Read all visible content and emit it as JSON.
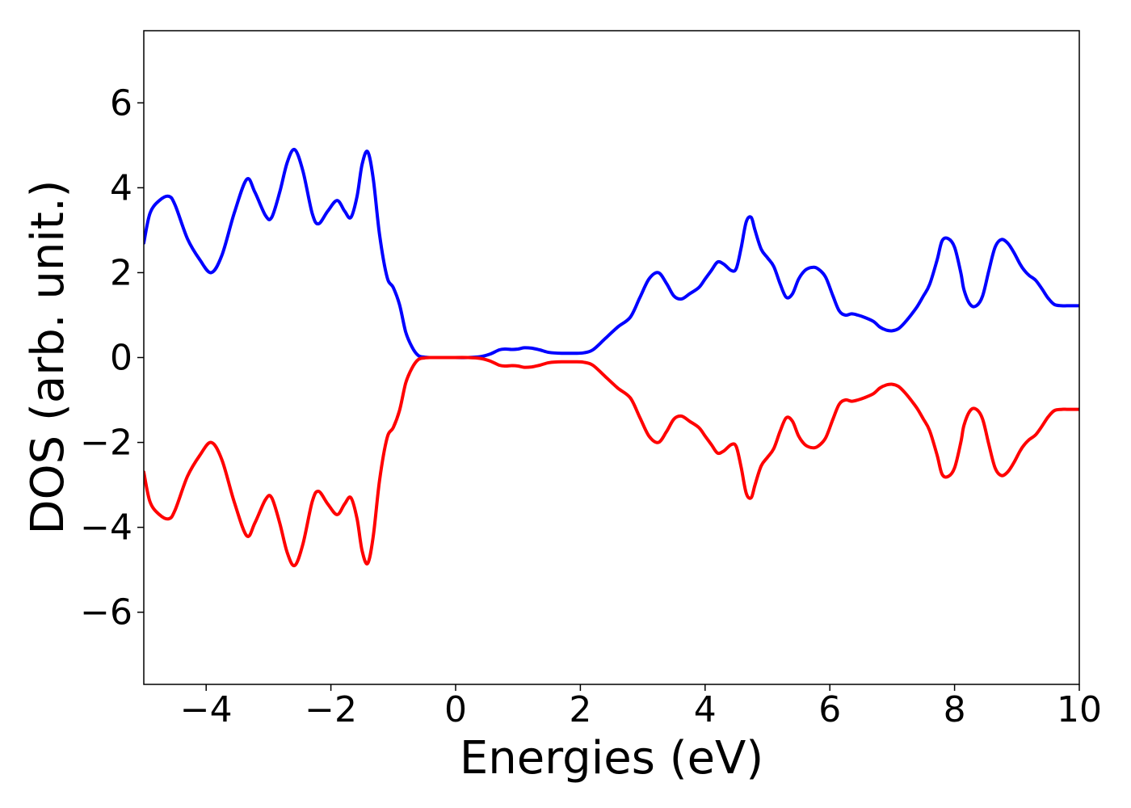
{
  "chart_data": {
    "type": "line",
    "title": "",
    "xlabel": "Energies (eV)",
    "ylabel": "DOS (arb. unit.)",
    "xlim": [
      -5,
      10
    ],
    "ylim": [
      -7.7,
      7.7
    ],
    "xticks": [
      -4,
      -2,
      0,
      2,
      4,
      6,
      8,
      10
    ],
    "xtick_labels": [
      "−4",
      "−2",
      "0",
      "2",
      "4",
      "6",
      "8",
      "10"
    ],
    "yticks": [
      -6,
      -4,
      -2,
      0,
      2,
      4,
      6
    ],
    "ytick_labels": [
      "−6",
      "−4",
      "−2",
      "0",
      "2",
      "4",
      "6"
    ],
    "grid": false,
    "legend": "none",
    "series": [
      {
        "color": "#0000ff",
        "x": [
          -5.0,
          -4.9,
          -4.75,
          -4.6,
          -4.5,
          -4.3,
          -4.1,
          -3.92,
          -3.75,
          -3.55,
          -3.35,
          -3.22,
          -3.05,
          -2.95,
          -2.82,
          -2.7,
          -2.58,
          -2.45,
          -2.3,
          -2.2,
          -2.05,
          -1.9,
          -1.78,
          -1.68,
          -1.58,
          -1.5,
          -1.41,
          -1.32,
          -1.22,
          -1.1,
          -1.0,
          -0.9,
          -0.8,
          -0.7,
          -0.6,
          -0.5,
          -0.4,
          -0.3,
          -0.1,
          0.2,
          0.4,
          0.55,
          0.7,
          0.8,
          0.9,
          1.0,
          1.1,
          1.22,
          1.35,
          1.5,
          1.7,
          1.9,
          2.05,
          2.2,
          2.4,
          2.6,
          2.8,
          2.95,
          3.1,
          3.25,
          3.38,
          3.5,
          3.62,
          3.75,
          3.9,
          4.0,
          4.1,
          4.2,
          4.3,
          4.42,
          4.5,
          4.58,
          4.66,
          4.74,
          4.8,
          4.9,
          5.0,
          5.1,
          5.2,
          5.3,
          5.4,
          5.5,
          5.6,
          5.7,
          5.8,
          5.93,
          6.05,
          6.15,
          6.25,
          6.35,
          6.45,
          6.55,
          6.7,
          6.8,
          6.9,
          7.0,
          7.1,
          7.2,
          7.3,
          7.4,
          7.5,
          7.6,
          7.72,
          7.8,
          7.9,
          8.0,
          8.1,
          8.15,
          8.25,
          8.35,
          8.45,
          8.55,
          8.65,
          8.75,
          8.85,
          8.95,
          9.05,
          9.12,
          9.2,
          9.3,
          9.4,
          9.5,
          9.6,
          9.72,
          9.8,
          9.9,
          10.0
        ],
        "y": [
          2.7,
          3.4,
          3.7,
          3.8,
          3.6,
          2.8,
          2.3,
          2.0,
          2.4,
          3.4,
          4.2,
          3.9,
          3.35,
          3.3,
          3.9,
          4.6,
          4.9,
          4.4,
          3.4,
          3.15,
          3.45,
          3.7,
          3.45,
          3.3,
          3.8,
          4.55,
          4.85,
          4.2,
          2.9,
          1.9,
          1.65,
          1.25,
          0.6,
          0.25,
          0.05,
          0.01,
          0.0,
          0.0,
          0.0,
          0.0,
          0.02,
          0.08,
          0.18,
          0.2,
          0.19,
          0.2,
          0.23,
          0.22,
          0.18,
          0.12,
          0.1,
          0.1,
          0.11,
          0.18,
          0.45,
          0.72,
          0.95,
          1.4,
          1.85,
          2.0,
          1.75,
          1.45,
          1.38,
          1.5,
          1.65,
          1.85,
          2.05,
          2.25,
          2.2,
          2.05,
          2.1,
          2.6,
          3.2,
          3.3,
          3.0,
          2.55,
          2.35,
          2.15,
          1.75,
          1.42,
          1.5,
          1.85,
          2.05,
          2.12,
          2.1,
          1.9,
          1.45,
          1.1,
          1.0,
          1.03,
          1.0,
          0.95,
          0.85,
          0.72,
          0.65,
          0.63,
          0.68,
          0.82,
          1.0,
          1.2,
          1.45,
          1.72,
          2.3,
          2.75,
          2.8,
          2.6,
          2.0,
          1.6,
          1.25,
          1.22,
          1.45,
          2.05,
          2.6,
          2.78,
          2.7,
          2.48,
          2.2,
          2.05,
          1.93,
          1.82,
          1.62,
          1.4,
          1.25,
          1.22,
          1.22,
          1.22,
          1.22
        ]
      },
      {
        "color": "#ff0000",
        "x": [
          -5.0,
          -4.9,
          -4.75,
          -4.6,
          -4.5,
          -4.3,
          -4.1,
          -3.92,
          -3.75,
          -3.55,
          -3.35,
          -3.22,
          -3.05,
          -2.95,
          -2.82,
          -2.7,
          -2.58,
          -2.45,
          -2.3,
          -2.2,
          -2.05,
          -1.9,
          -1.78,
          -1.68,
          -1.58,
          -1.5,
          -1.41,
          -1.32,
          -1.22,
          -1.1,
          -1.0,
          -0.9,
          -0.8,
          -0.7,
          -0.6,
          -0.5,
          -0.4,
          -0.3,
          -0.1,
          0.2,
          0.4,
          0.55,
          0.7,
          0.8,
          0.9,
          1.0,
          1.1,
          1.22,
          1.35,
          1.5,
          1.7,
          1.9,
          2.05,
          2.2,
          2.4,
          2.6,
          2.8,
          2.95,
          3.1,
          3.25,
          3.38,
          3.5,
          3.62,
          3.75,
          3.9,
          4.0,
          4.1,
          4.2,
          4.3,
          4.42,
          4.5,
          4.58,
          4.66,
          4.74,
          4.8,
          4.9,
          5.0,
          5.1,
          5.2,
          5.3,
          5.4,
          5.5,
          5.6,
          5.7,
          5.8,
          5.93,
          6.05,
          6.15,
          6.25,
          6.35,
          6.45,
          6.55,
          6.7,
          6.8,
          6.9,
          7.0,
          7.1,
          7.2,
          7.3,
          7.4,
          7.5,
          7.6,
          7.72,
          7.8,
          7.9,
          8.0,
          8.1,
          8.15,
          8.25,
          8.35,
          8.45,
          8.55,
          8.65,
          8.75,
          8.85,
          8.95,
          9.05,
          9.12,
          9.2,
          9.3,
          9.4,
          9.5,
          9.6,
          9.72,
          9.8,
          9.9,
          10.0
        ],
        "y": [
          -2.7,
          -3.4,
          -3.7,
          -3.8,
          -3.6,
          -2.8,
          -2.3,
          -2.0,
          -2.4,
          -3.4,
          -4.2,
          -3.9,
          -3.35,
          -3.3,
          -3.9,
          -4.6,
          -4.9,
          -4.4,
          -3.4,
          -3.15,
          -3.45,
          -3.7,
          -3.45,
          -3.3,
          -3.8,
          -4.55,
          -4.85,
          -4.2,
          -2.9,
          -1.9,
          -1.65,
          -1.25,
          -0.6,
          -0.25,
          -0.05,
          -0.01,
          0.0,
          0.0,
          0.0,
          0.0,
          -0.02,
          -0.08,
          -0.18,
          -0.2,
          -0.19,
          -0.2,
          -0.23,
          -0.22,
          -0.18,
          -0.12,
          -0.1,
          -0.1,
          -0.11,
          -0.18,
          -0.45,
          -0.72,
          -0.95,
          -1.4,
          -1.85,
          -2.0,
          -1.75,
          -1.45,
          -1.38,
          -1.5,
          -1.65,
          -1.85,
          -2.05,
          -2.25,
          -2.2,
          -2.05,
          -2.1,
          -2.6,
          -3.2,
          -3.3,
          -3.0,
          -2.55,
          -2.35,
          -2.15,
          -1.75,
          -1.42,
          -1.5,
          -1.85,
          -2.05,
          -2.12,
          -2.1,
          -1.9,
          -1.45,
          -1.1,
          -1.0,
          -1.03,
          -1.0,
          -0.95,
          -0.85,
          -0.72,
          -0.65,
          -0.63,
          -0.68,
          -0.82,
          -1.0,
          -1.2,
          -1.45,
          -1.72,
          -2.3,
          -2.75,
          -2.8,
          -2.6,
          -2.0,
          -1.6,
          -1.25,
          -1.22,
          -1.45,
          -2.05,
          -2.6,
          -2.78,
          -2.7,
          -2.48,
          -2.2,
          -2.05,
          -1.93,
          -1.82,
          -1.62,
          -1.4,
          -1.25,
          -1.22,
          -1.22,
          -1.22,
          -1.22
        ]
      }
    ]
  }
}
